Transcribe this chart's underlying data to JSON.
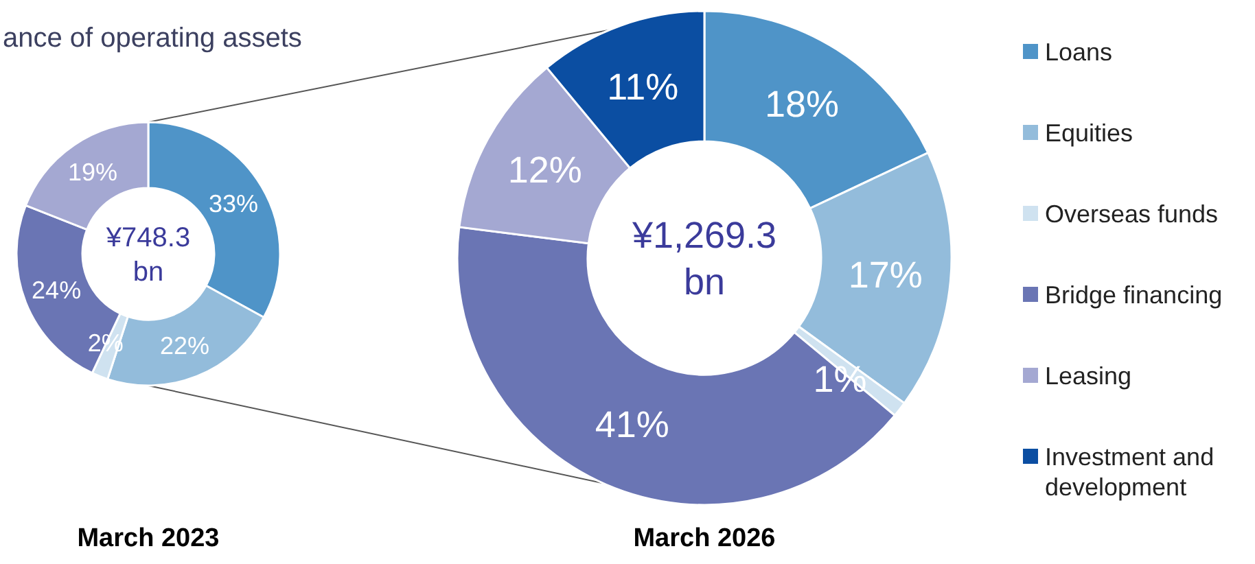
{
  "chart_data": [
    {
      "type": "donut",
      "title": "ance of operating assets",
      "xlabel": "March 2023",
      "annotations": [
        "¥748.3 bn"
      ],
      "categories": [
        null,
        null,
        null,
        null,
        null
      ],
      "values": [
        33,
        22,
        2,
        24,
        19
      ],
      "value_labels": [
        "33%",
        "22%",
        "2%",
        "24%",
        "19%"
      ],
      "colors": [
        "#4f94c8",
        "#93bcdb",
        "#cfe2f0",
        "#6a75b4",
        "#a4a8d2"
      ],
      "legend": false
    },
    {
      "type": "donut",
      "xlabel": "March 2026",
      "annotations": [
        "¥1,269.3 bn"
      ],
      "categories": [
        "Loans",
        "Equities",
        "Overseas funds",
        "Bridge financing",
        "Leasing",
        "Investment and development"
      ],
      "values": [
        18,
        17,
        1,
        41,
        12,
        11
      ],
      "value_labels": [
        "18%",
        "17%",
        "1%",
        "41%",
        "12%",
        "11%"
      ],
      "colors": [
        "#4f94c8",
        "#93bcdb",
        "#cfe2f0",
        "#6a75b4",
        "#a4a8d2",
        "#0b4ea2"
      ],
      "legend": "right"
    }
  ]
}
